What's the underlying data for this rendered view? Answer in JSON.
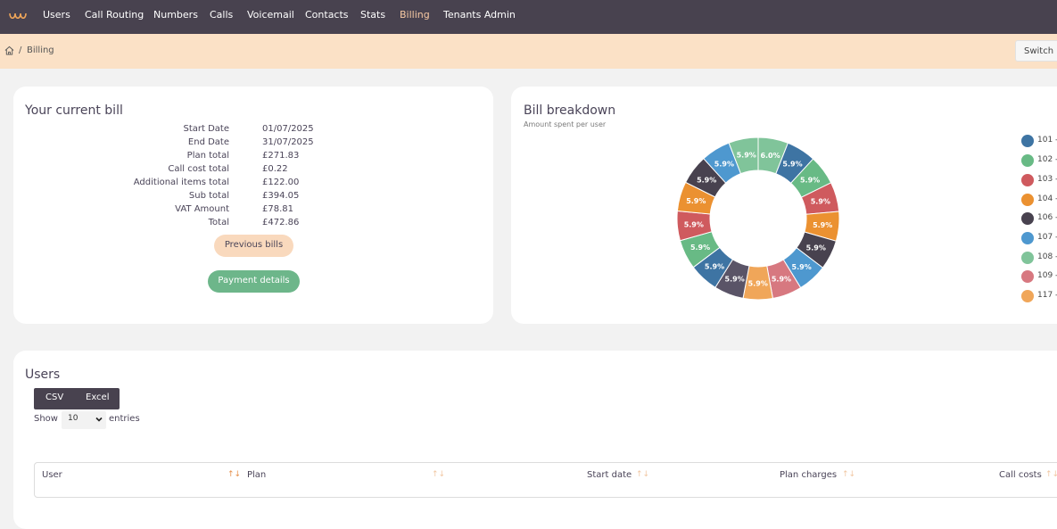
{
  "nav": {
    "items": [
      "Users",
      "Call Routing",
      "Numbers",
      "Calls",
      "Voicemail",
      "Contacts",
      "Stats",
      "Billing",
      "Tenants Admin"
    ],
    "active": "Billing",
    "accent_color": "#f7c9a3",
    "logo_icon": "logo-icon"
  },
  "breadcrumb": {
    "separator": "/",
    "current": "Billing",
    "home_icon": "home-icon"
  },
  "switch_label": "Switch",
  "current_bill": {
    "title": "Your current bill",
    "rows": [
      {
        "label": "Start Date",
        "value": "01/07/2025"
      },
      {
        "label": "End Date",
        "value": "31/07/2025"
      },
      {
        "label": "Plan total",
        "value": "£271.83"
      },
      {
        "label": "Call cost total",
        "value": "£0.22"
      },
      {
        "label": "Additional items total",
        "value": "£122.00"
      },
      {
        "label": "Sub total",
        "value": "£394.05"
      },
      {
        "label": "VAT Amount",
        "value": "£78.81"
      },
      {
        "label": "Total",
        "value": "£472.86"
      }
    ],
    "previous_bills_label": "Previous bills",
    "payment_details_label": "Payment details"
  },
  "breakdown": {
    "title": "Bill breakdown",
    "subtitle": "Amount spent per user",
    "legend": [
      "101 -",
      "102 -",
      "103 -",
      "104 -",
      "106 -",
      "107 -",
      "108 -",
      "109 -",
      "117 -"
    ]
  },
  "chart_data": {
    "type": "pie",
    "variant": "doughnut",
    "labels": [
      "",
      "",
      "",
      "",
      "",
      "",
      "",
      "",
      "",
      "",
      "",
      "",
      "",
      "",
      "",
      "",
      ""
    ],
    "values": [
      6.0,
      5.9,
      5.9,
      5.9,
      5.9,
      5.9,
      5.9,
      5.9,
      5.9,
      5.9,
      5.9,
      5.9,
      5.9,
      5.9,
      5.9,
      5.9,
      5.9
    ],
    "data_labels": [
      "6.0%",
      "5.9%",
      "5.9%",
      "5.9%",
      "5.9%",
      "5.9%",
      "5.9%",
      "5.9%",
      "5.9%",
      "5.9%",
      "5.9%",
      "5.9%",
      "5.9%",
      "5.9%",
      "5.9%",
      "5.9%",
      "5.9%"
    ],
    "colors": [
      "#80c49a",
      "#3e74a3",
      "#68ba85",
      "#cf5a5e",
      "#eb9131",
      "#48424f",
      "#4e98cf",
      "#d77880",
      "#f0a659",
      "#5a5467",
      "#3e74a3",
      "#68ba85",
      "#cf5a5e",
      "#eb9131",
      "#48424f",
      "#4e98cf",
      "#80c49a"
    ],
    "legend_position": "right",
    "legend_colors": [
      "#3e74a3",
      "#68ba85",
      "#cf5a5e",
      "#eb9131",
      "#48424f",
      "#4e98cf",
      "#80c49a",
      "#d77880",
      "#f0a659"
    ]
  },
  "users": {
    "title": "Users",
    "export_buttons": [
      "CSV",
      "Excel"
    ],
    "show_label": "Show",
    "entries_value": "10",
    "entries_label": "entries",
    "columns": [
      "User",
      "Plan",
      "Start date",
      "Plan charges",
      "Call costs"
    ],
    "sort_icon": "sort-icon"
  }
}
